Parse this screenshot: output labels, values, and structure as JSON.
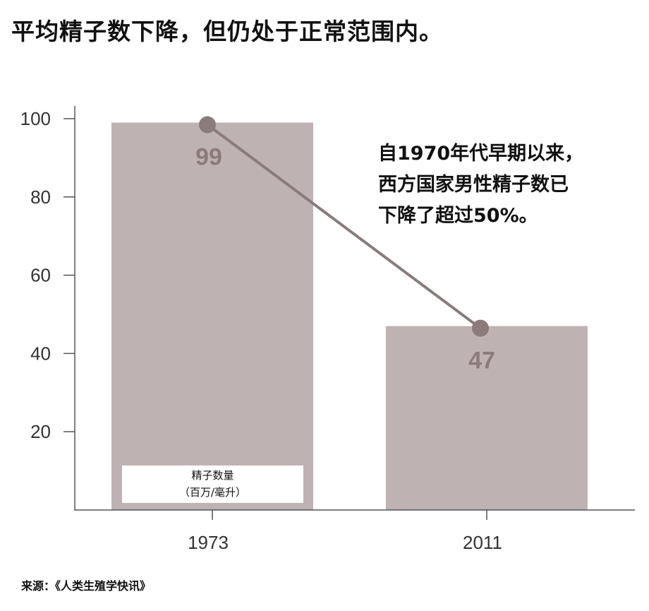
{
  "chart_data": {
    "type": "bar",
    "title": "平均精子数下降，但仍处于正常范围内。",
    "categories": [
      "1973",
      "2011"
    ],
    "values": [
      99,
      47
    ],
    "data_labels": [
      "99",
      "47"
    ],
    "ylim": [
      0,
      100
    ],
    "yticks": [
      20,
      40,
      60,
      80,
      100
    ],
    "grid": false,
    "overlay_line": true,
    "annotation": [
      "自1970年代早期以来，",
      "西方国家男性精子数已",
      "下降了超过50%。"
    ],
    "legend": {
      "line1": "精子数量",
      "line2": "（百万/毫升）"
    },
    "source": "来源：《人类生殖学快讯》",
    "colors": {
      "bar": "#bfb2b2",
      "line": "#8c7b7b",
      "marker": "#8c7b7b",
      "value_label": "#8c7b7b",
      "axis": "#555555"
    }
  }
}
